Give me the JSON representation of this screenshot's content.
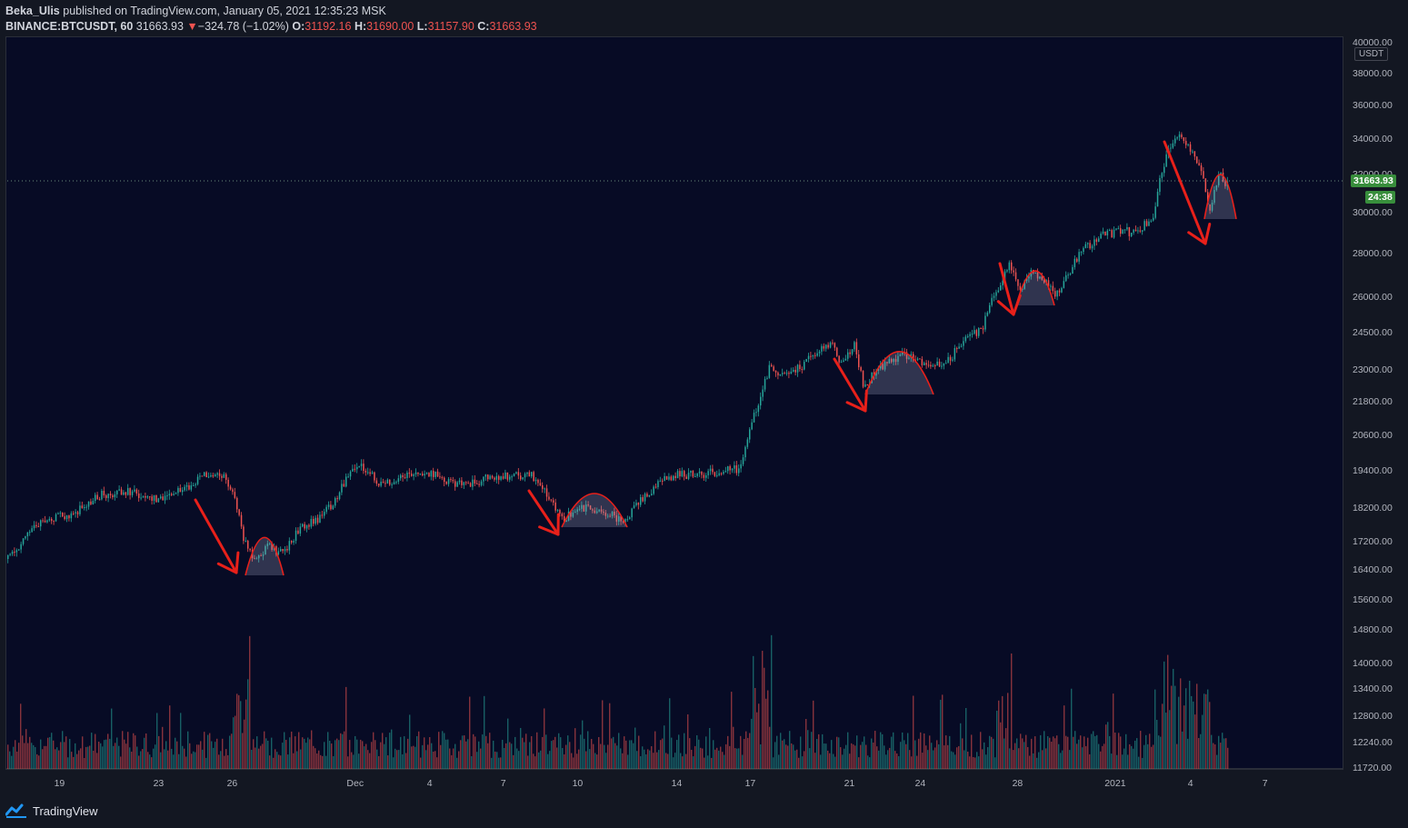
{
  "header": {
    "author": "Beka_Ulis",
    "published_text": " published on TradingView.com, January 05, 2021 12:35:23 MSK",
    "symbol": "BINANCE:BTCUSDT, 60",
    "last_price": "31663.93",
    "change_arrow": "▼",
    "change": "−324.78 (−1.02%)",
    "o_label": "O:",
    "o_value": "31192.16",
    "h_label": "H:",
    "h_value": "31690.00",
    "l_label": "L:",
    "l_value": "31157.90",
    "c_label": "C:",
    "c_value": "31663.93"
  },
  "price_axis": {
    "unit": "USDT",
    "ticks": [
      "40000.00",
      "38000.00",
      "36000.00",
      "34000.00",
      "32000.00",
      "30000.00",
      "28000.00",
      "26000.00",
      "24500.00",
      "23000.00",
      "21800.00",
      "20600.00",
      "19400.00",
      "18200.00",
      "17200.00",
      "16400.00",
      "15600.00",
      "14800.00",
      "14000.00",
      "13400.00",
      "12800.00",
      "12240.00",
      "11720.00"
    ],
    "current_price": "31663.93",
    "countdown": "24:38"
  },
  "time_axis": {
    "ticks": [
      "19",
      "23",
      "26",
      "Dec",
      "4",
      "7",
      "10",
      "14",
      "17",
      "21",
      "24",
      "28",
      "2021",
      "4",
      "7"
    ]
  },
  "footer": {
    "brand": "TradingView"
  },
  "colors": {
    "background": "#070b25",
    "up": "#26a69a",
    "down": "#ef5350",
    "annotation": "#e8201a",
    "price_badge": "#388e3c"
  },
  "chart_data": {
    "type": "candlestick",
    "symbol": "BINANCE:BTCUSDT",
    "interval": "60",
    "x": [
      "19",
      "23",
      "26",
      "Dec",
      "4",
      "7",
      "10",
      "14",
      "17",
      "21",
      "24",
      "28",
      "2021",
      "4"
    ],
    "close_approx": [
      18300,
      18700,
      16500,
      19400,
      18800,
      18900,
      17800,
      19300,
      23400,
      22800,
      23800,
      26800,
      29300,
      31663.93
    ],
    "last": {
      "open": 31192.16,
      "high": 31690.0,
      "low": 31157.9,
      "close": 31663.93
    },
    "annotations": [
      {
        "type": "arrow-down",
        "at": "24-26"
      },
      {
        "type": "rounded-top",
        "at": "26-27"
      },
      {
        "type": "arrow-down",
        "at": "8-9"
      },
      {
        "type": "rounded-top",
        "at": "9-11"
      },
      {
        "type": "arrow-down",
        "at": "20-21"
      },
      {
        "type": "rounded-top",
        "at": "21-24"
      },
      {
        "type": "arrow-down",
        "at": "27"
      },
      {
        "type": "rounded-top",
        "at": "27-29"
      },
      {
        "type": "arrow-down",
        "at": "3-4 Jan"
      },
      {
        "type": "rounded-top",
        "at": "4-5 Jan"
      }
    ]
  }
}
